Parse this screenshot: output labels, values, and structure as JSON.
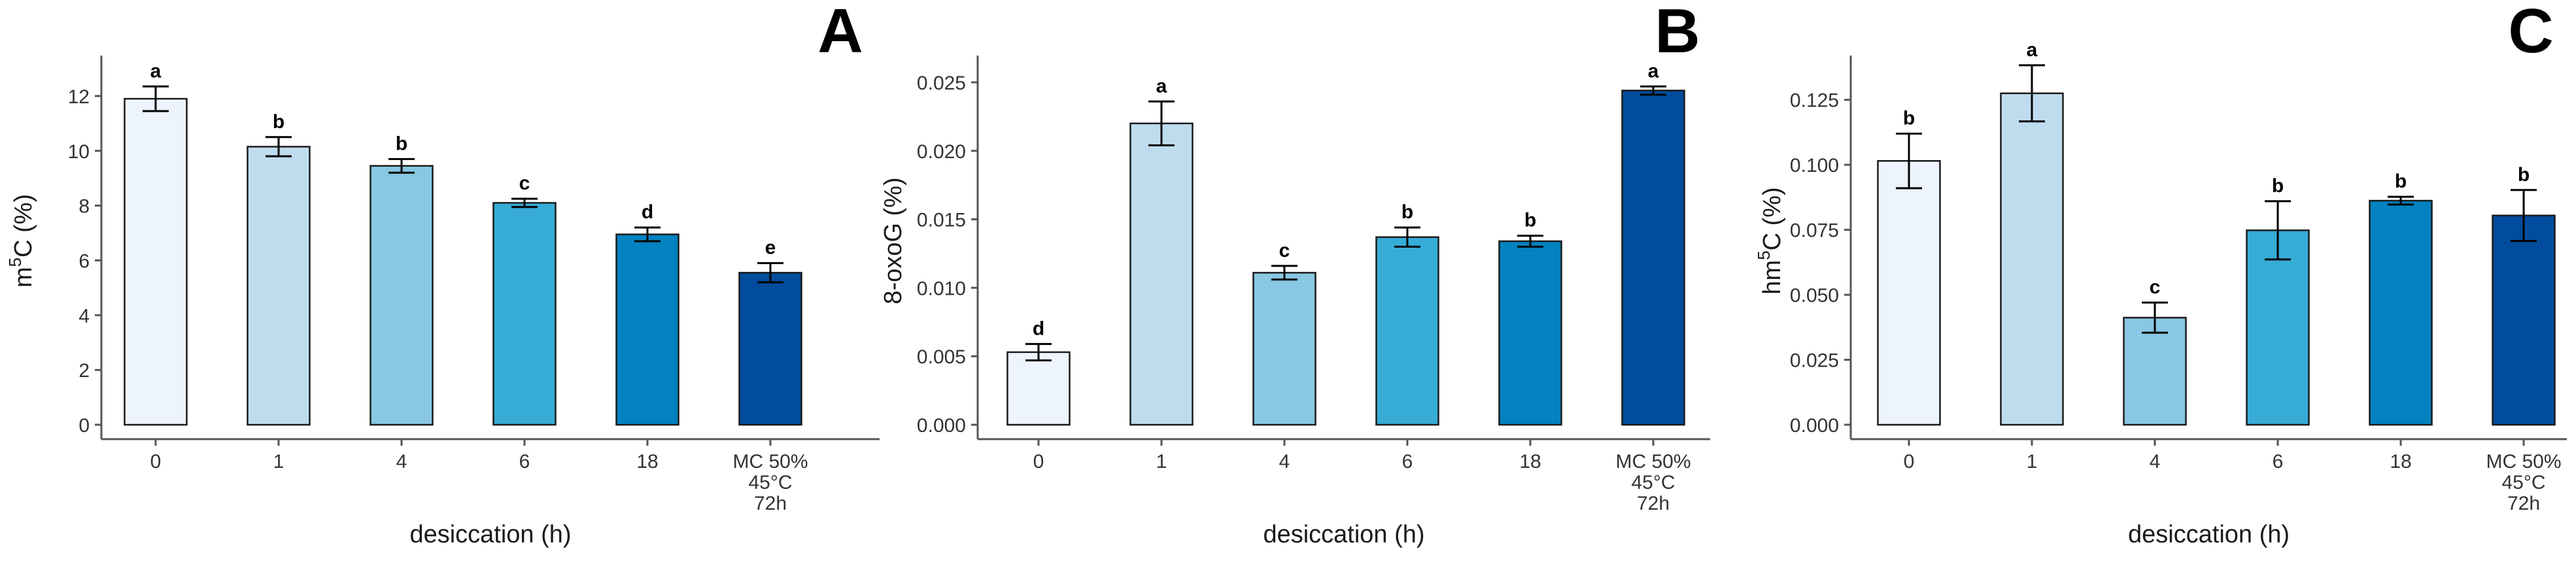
{
  "xlabel": "desiccation (h)",
  "categories": [
    "0",
    "1",
    "4",
    "6",
    "18",
    "MC 50%\n45°C\n72h"
  ],
  "colors": [
    "#eef4fd",
    "#bfdcee",
    "#88c8e2",
    "#36acd6",
    "#0282c0",
    "#014c9c"
  ],
  "chart_data": [
    {
      "type": "bar",
      "panel": "A",
      "ylabel_main": "m",
      "ylabel_sup": "5",
      "ylabel_rest": "C (%)",
      "ylim": [
        0,
        13
      ],
      "yticks": [
        0,
        2,
        4,
        6,
        8,
        10,
        12
      ],
      "ytick_labels": [
        "0",
        "2",
        "4",
        "6",
        "8",
        "10",
        "12"
      ],
      "values": [
        11.9,
        10.15,
        9.45,
        8.1,
        6.95,
        5.55
      ],
      "errors": [
        0.45,
        0.35,
        0.25,
        0.15,
        0.25,
        0.35
      ],
      "letters": [
        "a",
        "b",
        "b",
        "c",
        "d",
        "e"
      ]
    },
    {
      "type": "bar",
      "panel": "B",
      "ylabel_main": "8-oxoG (%)",
      "ylabel_sup": "",
      "ylabel_rest": "",
      "ylim": [
        0,
        0.026
      ],
      "yticks": [
        0,
        0.005,
        0.01,
        0.015,
        0.02,
        0.025
      ],
      "ytick_labels": [
        "0.000",
        "0.005",
        "0.010",
        "0.015",
        "0.020",
        "0.025"
      ],
      "values": [
        0.0053,
        0.022,
        0.0111,
        0.0137,
        0.0134,
        0.0244
      ],
      "errors": [
        0.0006,
        0.0016,
        0.0005,
        0.0007,
        0.0004,
        0.0003
      ],
      "letters": [
        "d",
        "a",
        "c",
        "b",
        "b",
        "a"
      ]
    },
    {
      "type": "bar",
      "panel": "C",
      "ylabel_main": "hm",
      "ylabel_sup": "5",
      "ylabel_rest": "C (%)",
      "ylim": [
        0,
        0.137
      ],
      "yticks": [
        0,
        0.025,
        0.05,
        0.075,
        0.1,
        0.125
      ],
      "ytick_labels": [
        "0.000",
        "0.025",
        "0.050",
        "0.075",
        "0.100",
        "0.125"
      ],
      "values": [
        0.1015,
        0.1275,
        0.0412,
        0.0748,
        0.0862,
        0.0805
      ],
      "errors": [
        0.0105,
        0.0108,
        0.0058,
        0.0112,
        0.0015,
        0.0098
      ],
      "letters": [
        "b",
        "a",
        "c",
        "b",
        "b",
        "b"
      ]
    }
  ]
}
